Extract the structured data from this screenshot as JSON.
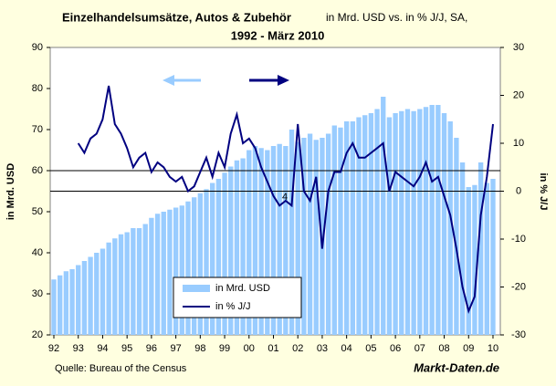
{
  "chart_data": {
    "type": "bar-line",
    "title": "Einzelhandelsumsätze, Autos & Zubehör",
    "title_note": "in Mrd. USD vs. in % J/J, SA,",
    "subtitle": "1992 - März 2010",
    "y_label": "in Mrd. USD",
    "y2_label": "in % J/J",
    "source": "Quelle: Bureau of the Census",
    "brand": "Markt-Daten.de",
    "annotation": "4",
    "xlim": [
      1991.85,
      2010.3
    ],
    "xticks": [
      {
        "value": 1992,
        "label": "92"
      },
      {
        "value": 1993,
        "label": "93"
      },
      {
        "value": 1994,
        "label": "94"
      },
      {
        "value": 1995,
        "label": "95"
      },
      {
        "value": 1996,
        "label": "96"
      },
      {
        "value": 1997,
        "label": "97"
      },
      {
        "value": 1998,
        "label": "98"
      },
      {
        "value": 1999,
        "label": "99"
      },
      {
        "value": 2000,
        "label": "00"
      },
      {
        "value": 2001,
        "label": "01"
      },
      {
        "value": 2002,
        "label": "02"
      },
      {
        "value": 2003,
        "label": "03"
      },
      {
        "value": 2004,
        "label": "04"
      },
      {
        "value": 2005,
        "label": "05"
      },
      {
        "value": 2006,
        "label": "06"
      },
      {
        "value": 2007,
        "label": "07"
      },
      {
        "value": 2008,
        "label": "08"
      },
      {
        "value": 2009,
        "label": "09"
      },
      {
        "value": 2010,
        "label": "10"
      }
    ],
    "ylim": [
      20,
      90
    ],
    "yticks": [
      20,
      30,
      40,
      50,
      60,
      70,
      80,
      90
    ],
    "y2lim": [
      -30,
      30
    ],
    "y2ticks": [
      -30,
      -20,
      -10,
      0,
      10,
      20,
      30
    ],
    "y_reference": 60,
    "y2_reference": 0,
    "x": [
      1992,
      1992.25,
      1992.5,
      1992.75,
      1993,
      1993.25,
      1993.5,
      1993.75,
      1994,
      1994.25,
      1994.5,
      1994.75,
      1995,
      1995.25,
      1995.5,
      1995.75,
      1996,
      1996.25,
      1996.5,
      1996.75,
      1997,
      1997.25,
      1997.5,
      1997.75,
      1998,
      1998.25,
      1998.5,
      1998.75,
      1999,
      1999.25,
      1999.5,
      1999.75,
      2000,
      2000.25,
      2000.5,
      2000.75,
      2001,
      2001.25,
      2001.5,
      2001.75,
      2002,
      2002.25,
      2002.5,
      2002.75,
      2003,
      2003.25,
      2003.5,
      2003.75,
      2004,
      2004.25,
      2004.5,
      2004.75,
      2005,
      2005.25,
      2005.5,
      2005.75,
      2006,
      2006.25,
      2006.5,
      2006.75,
      2007,
      2007.25,
      2007.5,
      2007.75,
      2008,
      2008.25,
      2008.5,
      2008.75,
      2009,
      2009.25,
      2009.5,
      2009.75,
      2010
    ],
    "series": [
      {
        "name": "in Mrd. USD",
        "type": "bar",
        "color": "#99ccff",
        "values": [
          33.5,
          34.5,
          35.5,
          36,
          37,
          38,
          39,
          40,
          41,
          42.5,
          43.5,
          44.5,
          45,
          46,
          46,
          47,
          48.5,
          49.5,
          50,
          50.5,
          51,
          51.5,
          52.5,
          53.5,
          54.5,
          55.5,
          57,
          58,
          59.5,
          61,
          62.5,
          63,
          65,
          66,
          65.5,
          65,
          66,
          66.5,
          66,
          70,
          67,
          68,
          69,
          67.5,
          68,
          69,
          71,
          70.5,
          72,
          72,
          73,
          73.5,
          74,
          75,
          78,
          73,
          74,
          74.5,
          75,
          74.5,
          75,
          75.5,
          76,
          76,
          74,
          72,
          68,
          62,
          56,
          56.5,
          62,
          57,
          58
        ]
      },
      {
        "name": "in % J/J",
        "type": "line",
        "axis": "y2",
        "color": "#000080",
        "values": [
          null,
          null,
          null,
          null,
          10,
          8,
          11,
          12,
          15,
          22,
          14,
          12,
          9,
          5,
          7,
          8,
          4,
          6,
          5,
          3,
          2,
          3,
          0,
          1,
          4,
          7,
          3,
          8,
          5,
          12,
          16,
          10,
          11,
          9,
          5,
          2,
          -1,
          -3,
          -2,
          -3,
          14,
          0,
          -2,
          3,
          -12,
          0,
          4,
          4,
          8,
          10,
          7,
          7,
          8,
          9,
          10,
          0,
          4,
          3,
          2,
          1,
          3,
          6,
          2,
          3,
          -1,
          -5,
          -12,
          -20,
          -25,
          -22,
          -5,
          3,
          14
        ]
      }
    ]
  }
}
